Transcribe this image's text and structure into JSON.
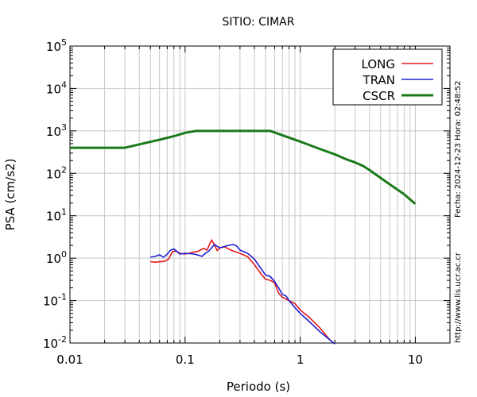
{
  "chart_data": {
    "type": "line",
    "title": "SITIO: CIMAR",
    "xlabel": "Periodo (s)",
    "ylabel": "PSA (cm/s2)",
    "x_scale": "log",
    "y_scale": "log",
    "xlim": [
      0.01,
      20
    ],
    "ylim": [
      0.01,
      100000
    ],
    "grid": true,
    "legend_position": "top-right",
    "x_ticks": [
      {
        "value": 0.01,
        "label": "0.01"
      },
      {
        "value": 0.1,
        "label": "0.1"
      },
      {
        "value": 1,
        "label": "1"
      },
      {
        "value": 10,
        "label": "10"
      }
    ],
    "y_ticks": [
      {
        "value": 0.01,
        "base": "10",
        "exp": "-2"
      },
      {
        "value": 0.1,
        "base": "10",
        "exp": "-1"
      },
      {
        "value": 1,
        "base": "10",
        "exp": "0"
      },
      {
        "value": 10,
        "base": "10",
        "exp": "1"
      },
      {
        "value": 100,
        "base": "10",
        "exp": "2"
      },
      {
        "value": 1000,
        "base": "10",
        "exp": "3"
      },
      {
        "value": 10000,
        "base": "10",
        "exp": "4"
      },
      {
        "value": 100000,
        "base": "10",
        "exp": "5"
      }
    ],
    "series": [
      {
        "name": "LONG",
        "color": "#e41a1c",
        "points": [
          [
            0.05,
            0.83
          ],
          [
            0.055,
            0.8
          ],
          [
            0.06,
            0.82
          ],
          [
            0.067,
            0.85
          ],
          [
            0.072,
            0.95
          ],
          [
            0.078,
            1.45
          ],
          [
            0.085,
            1.45
          ],
          [
            0.09,
            1.3
          ],
          [
            0.1,
            1.25
          ],
          [
            0.11,
            1.32
          ],
          [
            0.12,
            1.4
          ],
          [
            0.13,
            1.45
          ],
          [
            0.145,
            1.7
          ],
          [
            0.155,
            1.55
          ],
          [
            0.17,
            2.7
          ],
          [
            0.18,
            2.05
          ],
          [
            0.19,
            1.5
          ],
          [
            0.2,
            1.75
          ],
          [
            0.22,
            1.85
          ],
          [
            0.25,
            1.55
          ],
          [
            0.3,
            1.3
          ],
          [
            0.35,
            1.08
          ],
          [
            0.4,
            0.7
          ],
          [
            0.45,
            0.45
          ],
          [
            0.5,
            0.32
          ],
          [
            0.55,
            0.3
          ],
          [
            0.6,
            0.26
          ],
          [
            0.65,
            0.15
          ],
          [
            0.7,
            0.12
          ],
          [
            0.8,
            0.1
          ],
          [
            0.9,
            0.085
          ],
          [
            1.0,
            0.06
          ],
          [
            1.2,
            0.04
          ],
          [
            1.5,
            0.022
          ],
          [
            1.8,
            0.012
          ],
          [
            2.0,
            0.0095
          ]
        ]
      },
      {
        "name": "TRAN",
        "color": "#1f1fd6",
        "points": [
          [
            0.05,
            1.05
          ],
          [
            0.055,
            1.1
          ],
          [
            0.06,
            1.2
          ],
          [
            0.065,
            1.05
          ],
          [
            0.07,
            1.25
          ],
          [
            0.075,
            1.55
          ],
          [
            0.08,
            1.65
          ],
          [
            0.09,
            1.25
          ],
          [
            0.1,
            1.3
          ],
          [
            0.11,
            1.28
          ],
          [
            0.12,
            1.25
          ],
          [
            0.13,
            1.18
          ],
          [
            0.14,
            1.1
          ],
          [
            0.15,
            1.3
          ],
          [
            0.16,
            1.45
          ],
          [
            0.18,
            2.1
          ],
          [
            0.2,
            1.75
          ],
          [
            0.23,
            1.95
          ],
          [
            0.26,
            2.1
          ],
          [
            0.28,
            1.95
          ],
          [
            0.3,
            1.55
          ],
          [
            0.35,
            1.3
          ],
          [
            0.4,
            0.95
          ],
          [
            0.45,
            0.6
          ],
          [
            0.5,
            0.4
          ],
          [
            0.55,
            0.37
          ],
          [
            0.6,
            0.28
          ],
          [
            0.65,
            0.2
          ],
          [
            0.7,
            0.14
          ],
          [
            0.75,
            0.13
          ],
          [
            0.8,
            0.1
          ],
          [
            0.9,
            0.068
          ],
          [
            1.0,
            0.05
          ],
          [
            1.2,
            0.032
          ],
          [
            1.5,
            0.018
          ],
          [
            1.8,
            0.012
          ],
          [
            2.0,
            0.0095
          ]
        ]
      },
      {
        "name": "CSCR",
        "color": "#1a7a1a",
        "points": [
          [
            0.01,
            400
          ],
          [
            0.03,
            400
          ],
          [
            0.06,
            620
          ],
          [
            0.08,
            750
          ],
          [
            0.1,
            900
          ],
          [
            0.125,
            1000
          ],
          [
            0.55,
            1000
          ],
          [
            1.0,
            560
          ],
          [
            1.5,
            370
          ],
          [
            2.0,
            280
          ],
          [
            2.5,
            215
          ],
          [
            3.0,
            180
          ],
          [
            3.5,
            150
          ],
          [
            4.0,
            120
          ],
          [
            5.0,
            78
          ],
          [
            6.0,
            55
          ],
          [
            8.0,
            32
          ],
          [
            10.0,
            19
          ]
        ]
      }
    ],
    "side_text": {
      "timestamp": "Fecha: 2024-12-23  Hora: 02:48:52",
      "url": "http://www.lis.ucr.ac.cr"
    }
  }
}
